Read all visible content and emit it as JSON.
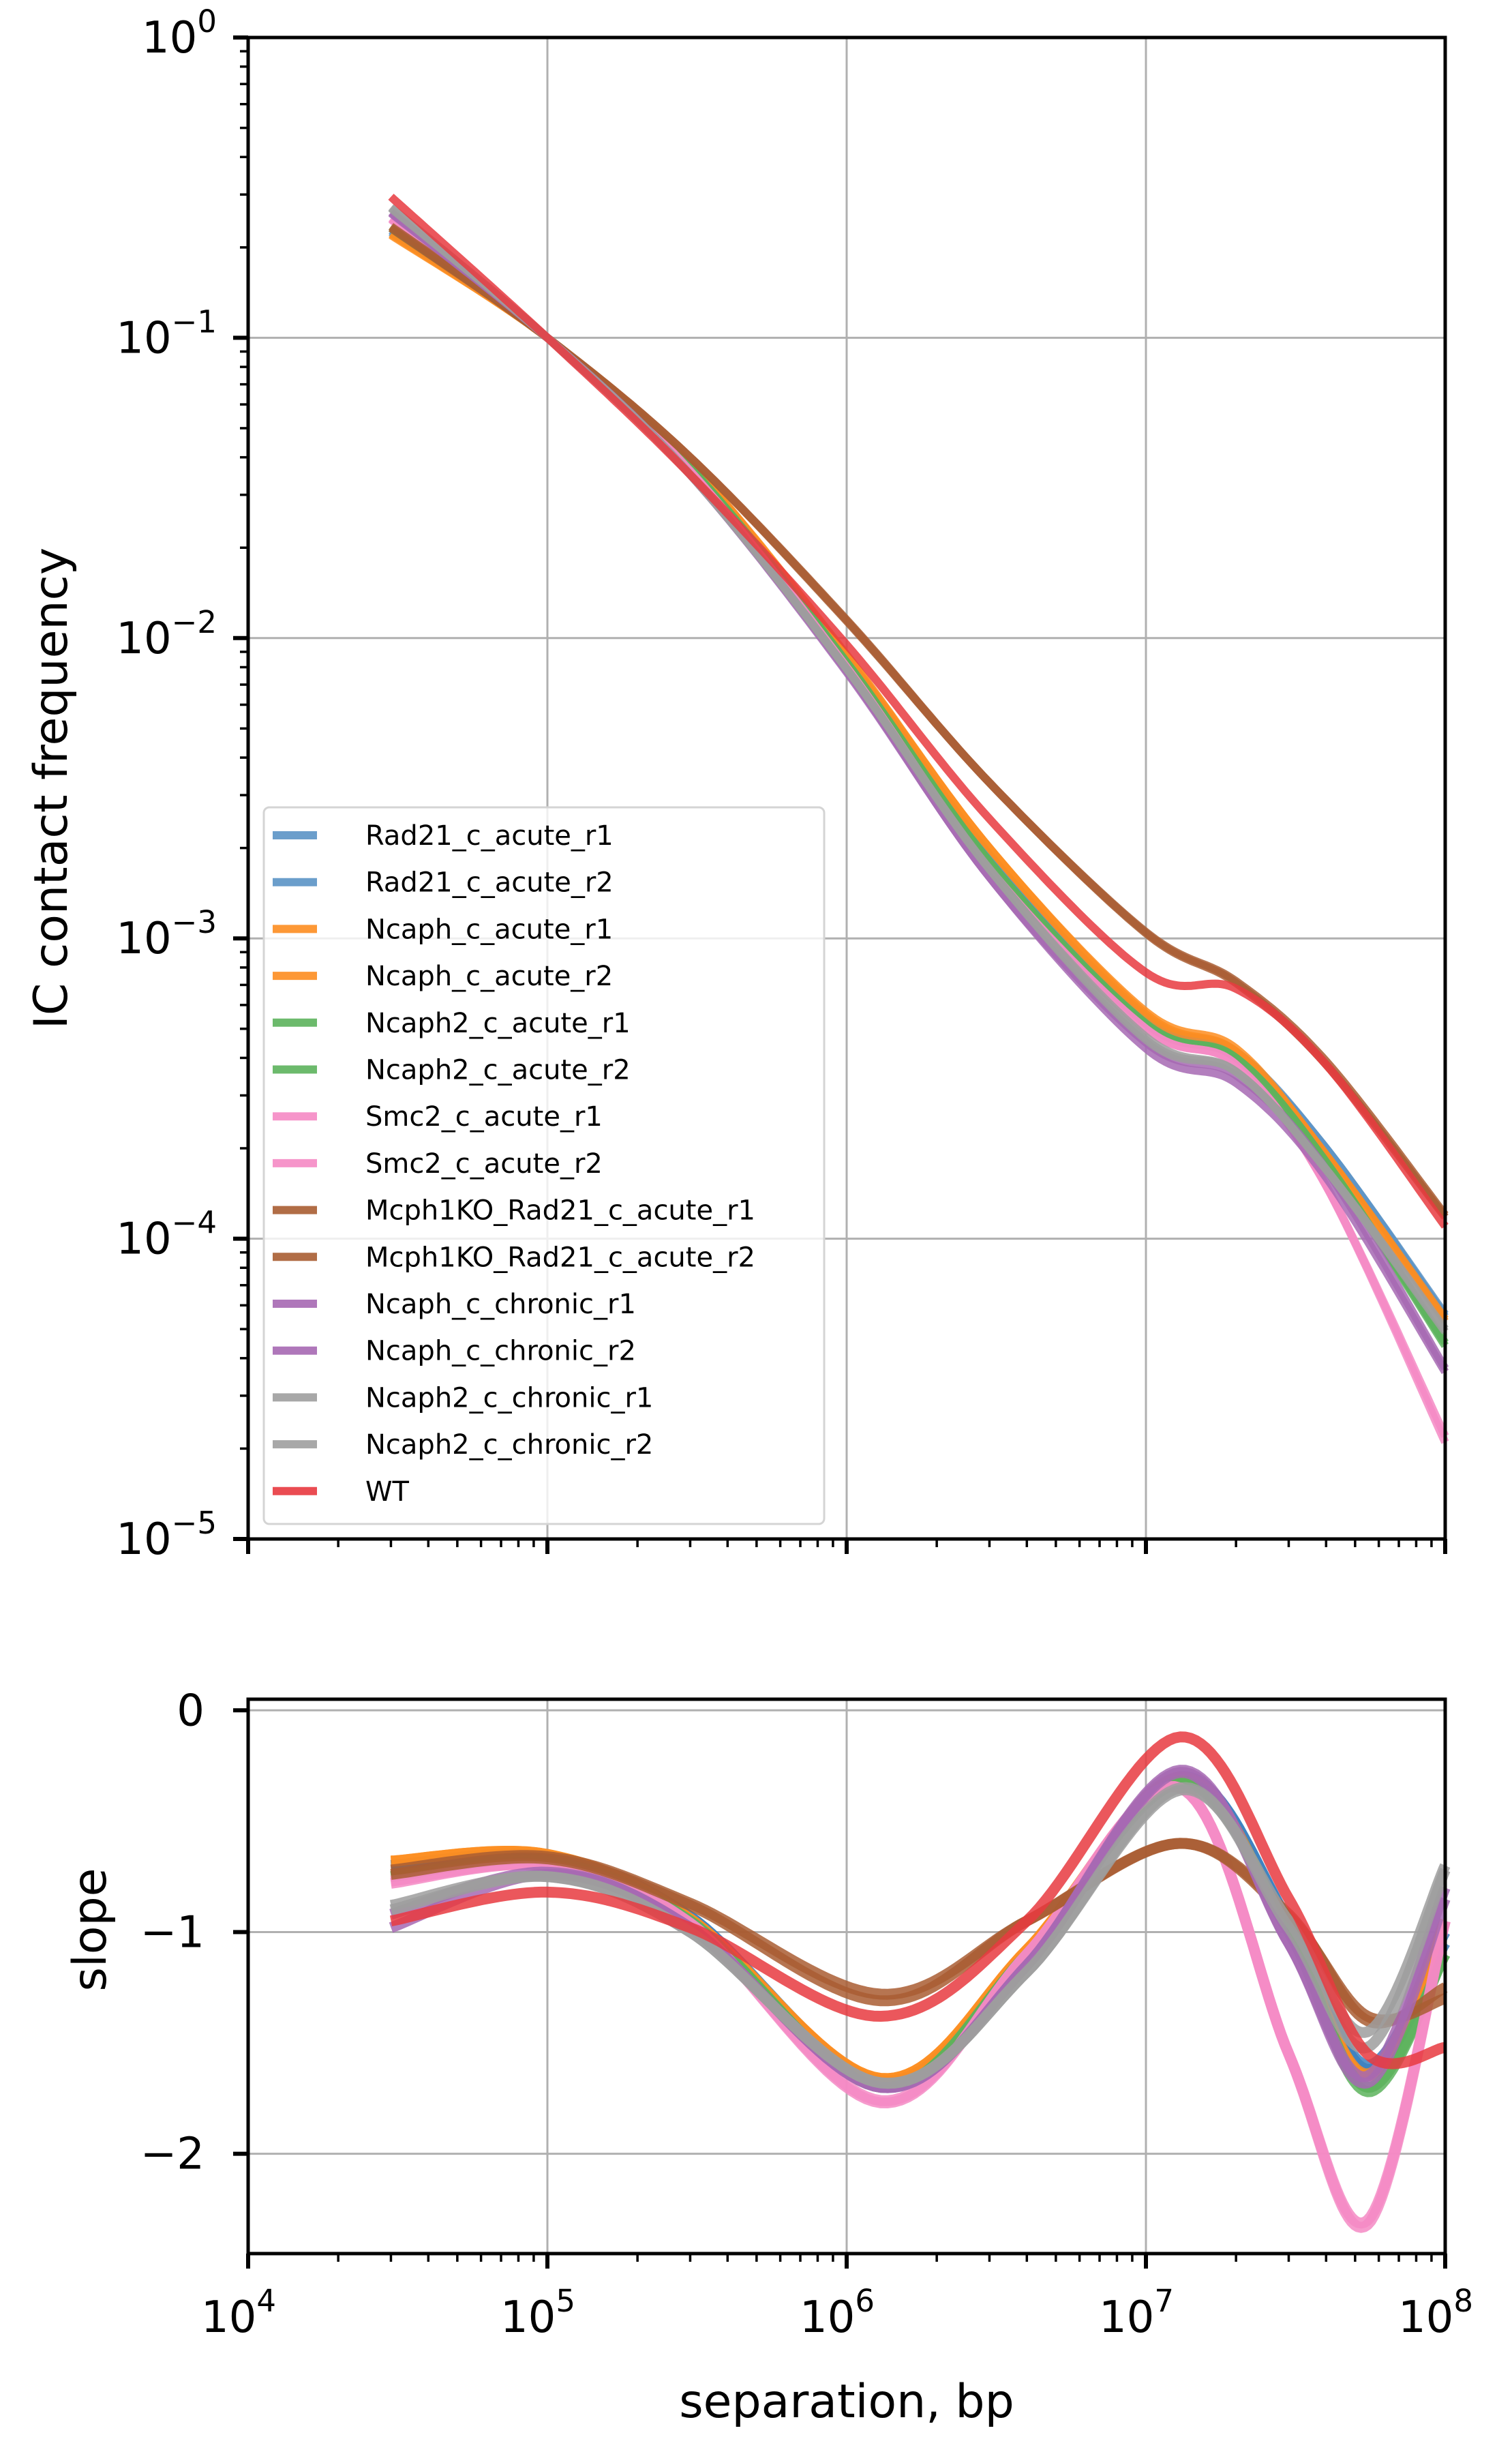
{
  "chart_data": [
    {
      "type": "line",
      "panel": "top",
      "title": "",
      "xlabel": "",
      "ylabel": "IC contact frequency",
      "xscale": "log",
      "yscale": "log",
      "xlim": [
        10000,
        100000000
      ],
      "ylim": [
        1e-05,
        1
      ],
      "grid": true,
      "x_ticks": [
        {
          "base": "10",
          "exp": "4"
        },
        {
          "base": "10",
          "exp": "5"
        },
        {
          "base": "10",
          "exp": "6"
        },
        {
          "base": "10",
          "exp": "7"
        },
        {
          "base": "10",
          "exp": "8"
        }
      ],
      "y_ticks": [
        {
          "value": 1,
          "base": "10",
          "exp": "0"
        },
        {
          "value": 0.1,
          "base": "10",
          "exp": "−1"
        },
        {
          "value": 0.01,
          "base": "10",
          "exp": "−2"
        },
        {
          "value": 0.001,
          "base": "10",
          "exp": "−3"
        },
        {
          "value": 0.0001,
          "base": "10",
          "exp": "−4"
        },
        {
          "value": 1e-05,
          "base": "10",
          "exp": "−5"
        }
      ],
      "legend_position": "lower-left",
      "x": [
        30000,
        100000,
        300000,
        1000000,
        3000000,
        10000000,
        20000000,
        40000000,
        100000000
      ],
      "series": [
        {
          "name": "Rad21_c_acute_r1",
          "color": "#5b93c5",
          "values": [
            0.225,
            0.1,
            0.037,
            0.0086,
            0.0019,
            0.00055,
            0.00042,
            0.0002,
            5.6e-05
          ]
        },
        {
          "name": "Rad21_c_acute_r2",
          "color": "#5b93c5",
          "values": [
            0.228,
            0.1,
            0.037,
            0.0085,
            0.0019,
            0.00054,
            0.00041,
            0.0002,
            5.5e-05
          ]
        },
        {
          "name": "Ncaph_c_acute_r1",
          "color": "#fd8d20",
          "values": [
            0.22,
            0.1,
            0.038,
            0.0088,
            0.002,
            0.00057,
            0.00043,
            0.00019,
            5.4e-05
          ]
        },
        {
          "name": "Ncaph_c_acute_r2",
          "color": "#fd8d20",
          "values": [
            0.222,
            0.1,
            0.038,
            0.0087,
            0.002,
            0.00056,
            0.00042,
            0.00019,
            5.3e-05
          ]
        },
        {
          "name": "Ncaph2_c_acute_r1",
          "color": "#5cb35c",
          "values": [
            0.235,
            0.1,
            0.037,
            0.0083,
            0.0018,
            0.00052,
            0.0004,
            0.00018,
            4.4e-05
          ]
        },
        {
          "name": "Ncaph2_c_acute_r2",
          "color": "#5cb35c",
          "values": [
            0.232,
            0.1,
            0.037,
            0.0083,
            0.0018,
            0.00052,
            0.0004,
            0.00018,
            4.5e-05
          ]
        },
        {
          "name": "Smc2_c_acute_r1",
          "color": "#f589c4",
          "values": [
            0.248,
            0.1,
            0.036,
            0.008,
            0.0017,
            0.0005,
            0.00038,
            0.00015,
            2.1e-05
          ]
        },
        {
          "name": "Smc2_c_acute_r2",
          "color": "#f589c4",
          "values": [
            0.25,
            0.1,
            0.036,
            0.008,
            0.0017,
            0.0005,
            0.00038,
            0.00015,
            2.2e-05
          ]
        },
        {
          "name": "Mcph1KO_Rad21_c_acute_r1",
          "color": "#a95d32",
          "values": [
            0.232,
            0.1,
            0.04,
            0.0115,
            0.0033,
            0.00105,
            0.00072,
            0.00039,
            0.00012
          ]
        },
        {
          "name": "Mcph1KO_Rad21_c_acute_r2",
          "color": "#a95d32",
          "values": [
            0.235,
            0.1,
            0.04,
            0.0114,
            0.0033,
            0.00104,
            0.00071,
            0.00038,
            0.000118
          ]
        },
        {
          "name": "Ncaph_c_chronic_r1",
          "color": "#a668b3",
          "values": [
            0.26,
            0.1,
            0.035,
            0.0077,
            0.0016,
            0.00043,
            0.00033,
            0.00016,
            3.6e-05
          ]
        },
        {
          "name": "Ncaph_c_chronic_r2",
          "color": "#a668b3",
          "values": [
            0.262,
            0.1,
            0.035,
            0.0078,
            0.0016,
            0.00045,
            0.00035,
            0.00017,
            3.7e-05
          ]
        },
        {
          "name": "Ncaph2_c_chronic_r1",
          "color": "#9e9e9e",
          "values": [
            0.27,
            0.1,
            0.035,
            0.0079,
            0.0017,
            0.00046,
            0.00036,
            0.00017,
            5e-05
          ]
        },
        {
          "name": "Ncaph2_c_chronic_r2",
          "color": "#9e9e9e",
          "values": [
            0.272,
            0.1,
            0.035,
            0.0079,
            0.0017,
            0.00047,
            0.00036,
            0.00017,
            4.9e-05
          ]
        },
        {
          "name": "WT",
          "color": "#e8393f",
          "values": [
            0.295,
            0.1,
            0.035,
            0.0095,
            0.0025,
            0.00077,
            0.00068,
            0.00038,
            0.00011
          ]
        }
      ]
    },
    {
      "type": "line",
      "panel": "bottom",
      "title": "",
      "xlabel": "separation, bp",
      "ylabel": "slope",
      "xscale": "log",
      "yscale": "linear",
      "xlim": [
        10000,
        100000000
      ],
      "ylim": [
        -2.45,
        0.05
      ],
      "grid": true,
      "x_ticks": [
        {
          "base": "10",
          "exp": "4"
        },
        {
          "base": "10",
          "exp": "5"
        },
        {
          "base": "10",
          "exp": "6"
        },
        {
          "base": "10",
          "exp": "7"
        },
        {
          "base": "10",
          "exp": "8"
        }
      ],
      "y_ticks": [
        {
          "value": 0,
          "label": "0"
        },
        {
          "value": -1,
          "label": "−1"
        },
        {
          "value": -2,
          "label": "−2"
        }
      ],
      "x": [
        30000,
        100000,
        300000,
        1300000,
        4000000,
        13000000,
        30000000,
        55000000,
        100000000
      ],
      "series": [
        {
          "name": "Rad21_c_acute_r1",
          "color": "#3b80c0",
          "values": [
            -0.7,
            -0.66,
            -0.93,
            -1.68,
            -1.1,
            -0.3,
            -0.95,
            -1.62,
            -1.05
          ]
        },
        {
          "name": "Rad21_c_acute_r2",
          "color": "#3b80c0",
          "values": [
            -0.7,
            -0.66,
            -0.93,
            -1.67,
            -1.1,
            -0.3,
            -0.95,
            -1.6,
            -1.0
          ]
        },
        {
          "name": "Ncaph_c_acute_r1",
          "color": "#fd8d20",
          "values": [
            -0.68,
            -0.65,
            -0.94,
            -1.66,
            -1.08,
            -0.3,
            -1.0,
            -1.65,
            -0.95
          ]
        },
        {
          "name": "Ncaph_c_acute_r2",
          "color": "#fd8d20",
          "values": [
            -0.68,
            -0.65,
            -0.94,
            -1.66,
            -1.08,
            -0.31,
            -1.0,
            -1.64,
            -0.95
          ]
        },
        {
          "name": "Ncaph2_c_acute_r1",
          "color": "#5cb35c",
          "values": [
            -0.75,
            -0.68,
            -0.95,
            -1.7,
            -1.1,
            -0.33,
            -1.0,
            -1.72,
            -1.1
          ]
        },
        {
          "name": "Ncaph2_c_acute_r2",
          "color": "#5cb35c",
          "values": [
            -0.75,
            -0.68,
            -0.95,
            -1.7,
            -1.1,
            -0.32,
            -1.0,
            -1.7,
            -1.1
          ]
        },
        {
          "name": "Smc2_c_acute_r1",
          "color": "#f589c4",
          "values": [
            -0.78,
            -0.7,
            -0.96,
            -1.77,
            -1.1,
            -0.35,
            -1.55,
            -2.32,
            -0.95
          ]
        },
        {
          "name": "Smc2_c_acute_r2",
          "color": "#f589c4",
          "values": [
            -0.77,
            -0.7,
            -0.96,
            -1.76,
            -1.1,
            -0.35,
            -1.55,
            -2.3,
            -0.95
          ]
        },
        {
          "name": "Mcph1KO_Rad21_c_acute_r1",
          "color": "#a95d32",
          "values": [
            -0.72,
            -0.66,
            -0.87,
            -1.28,
            -0.95,
            -0.6,
            -0.92,
            -1.4,
            -1.25
          ]
        },
        {
          "name": "Mcph1KO_Rad21_c_acute_r2",
          "color": "#a95d32",
          "values": [
            -0.74,
            -0.67,
            -0.88,
            -1.31,
            -0.95,
            -0.6,
            -0.93,
            -1.38,
            -1.3
          ]
        },
        {
          "name": "Ncaph_c_chronic_r1",
          "color": "#a668b3",
          "values": [
            -0.92,
            -0.73,
            -0.98,
            -1.7,
            -1.15,
            -0.27,
            -1.05,
            -1.68,
            -0.85
          ]
        },
        {
          "name": "Ncaph_c_chronic_r2",
          "color": "#a668b3",
          "values": [
            -0.98,
            -0.74,
            -0.98,
            -1.7,
            -1.15,
            -0.28,
            -1.05,
            -1.65,
            -0.8
          ]
        },
        {
          "name": "Ncaph2_c_chronic_r1",
          "color": "#9e9e9e",
          "values": [
            -0.88,
            -0.75,
            -1.0,
            -1.68,
            -1.18,
            -0.35,
            -0.98,
            -1.52,
            -0.72
          ]
        },
        {
          "name": "Ncaph2_c_chronic_r2",
          "color": "#9e9e9e",
          "values": [
            -0.9,
            -0.75,
            -1.0,
            -1.68,
            -1.18,
            -0.36,
            -0.95,
            -1.45,
            -0.7
          ]
        },
        {
          "name": "WT",
          "color": "#e8393f",
          "values": [
            -0.95,
            -0.82,
            -0.98,
            -1.38,
            -0.95,
            -0.12,
            -0.85,
            -1.55,
            -1.52
          ]
        }
      ]
    }
  ]
}
